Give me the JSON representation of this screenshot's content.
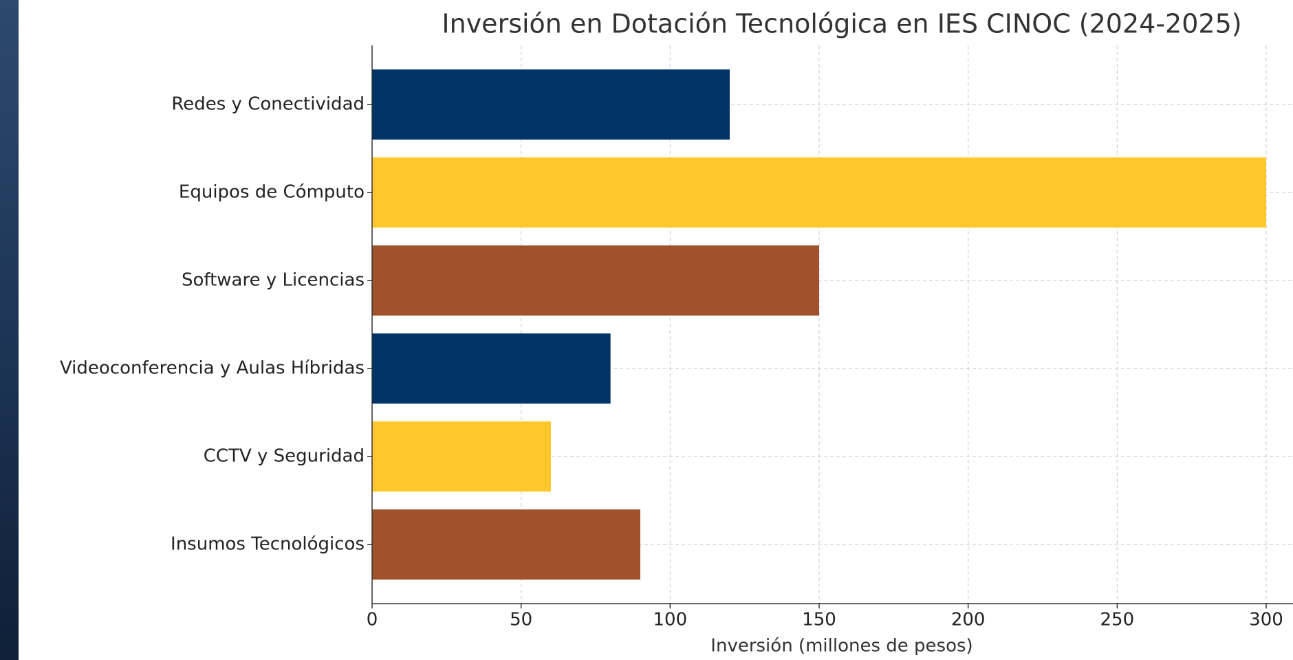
{
  "chart_data": {
    "type": "barh",
    "title": "Inversión en Dotación Tecnológica en IES CINOC (2024-2025)",
    "x_label": "Inversión (millones de pesos)",
    "categories": [
      "Redes y Conectividad",
      "Equipos de Cómputo",
      "Software y Licencias",
      "Videoconferencia y Aulas Híbridas",
      "CCTV y Seguridad",
      "Insumos Tecnológicos"
    ],
    "values": [
      120,
      300,
      150,
      80,
      60,
      90
    ],
    "colors": [
      "#003366",
      "#ffc72c",
      "#a0522d",
      "#003366",
      "#ffc72c",
      "#a0522d"
    ],
    "xlim": [
      0,
      309
    ],
    "xticks": [
      0,
      50,
      100,
      150,
      200,
      250,
      300
    ],
    "grid": true
  }
}
